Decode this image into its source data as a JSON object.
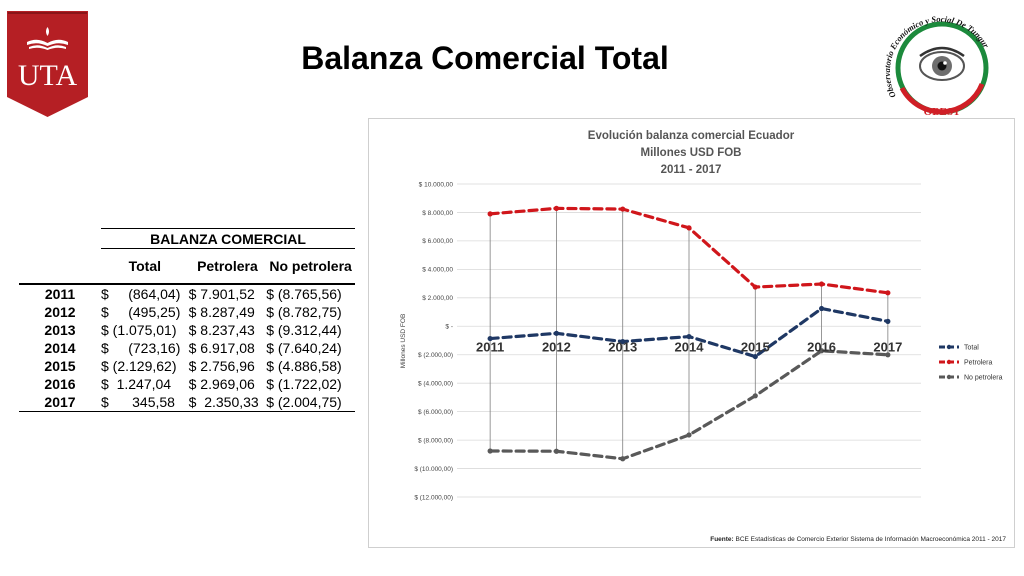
{
  "slide": {
    "title": "Balanza Comercial Total",
    "logo_left_text": "UTA",
    "logo_right_text": "OBEST",
    "logo_right_ring_text": "Observatorio Económico y Social De Tungurahua"
  },
  "table": {
    "header": "BALANZA COMERCIAL",
    "columns": [
      "Total",
      "Petrolera",
      "No petrolera"
    ],
    "rows": [
      {
        "year": "2011",
        "total": "$     (864,04)",
        "petrolera": "$ 7.901,52",
        "no_petrolera": "$ (8.765,56)"
      },
      {
        "year": "2012",
        "total": "$     (495,25)",
        "petrolera": "$ 8.287,49",
        "no_petrolera": "$ (8.782,75)"
      },
      {
        "year": "2013",
        "total": "$ (1.075,01)",
        "petrolera": "$ 8.237,43",
        "no_petrolera": "$ (9.312,44)"
      },
      {
        "year": "2014",
        "total": "$     (723,16)",
        "petrolera": "$ 6.917,08",
        "no_petrolera": "$ (7.640,24)"
      },
      {
        "year": "2015",
        "total": "$ (2.129,62)",
        "petrolera": "$ 2.756,96",
        "no_petrolera": "$ (4.886,58)"
      },
      {
        "year": "2016",
        "total": "$  1.247,04",
        "petrolera": "$ 2.969,06",
        "no_petrolera": "$ (1.722,02)"
      },
      {
        "year": "2017",
        "total": "$      345,58",
        "petrolera": "$  2.350,33",
        "no_petrolera": "$ (2.004,75)"
      }
    ]
  },
  "chart_data": {
    "type": "line",
    "title_lines": [
      "Evolución balanza comercial Ecuador",
      "Millones USD FOB",
      "2011 - 2017"
    ],
    "ylabel": "Millones USD FOB",
    "ylim": [
      -12000,
      10000
    ],
    "yticks": [
      10000,
      8000,
      6000,
      4000,
      2000,
      0,
      -2000,
      -4000,
      -6000,
      -8000,
      -10000,
      -12000
    ],
    "ytick_labels": [
      "$ 10.000,00",
      "$ 8.000,00",
      "$ 6.000,00",
      "$ 4.000,00",
      "$ 2.000,00",
      "$ -",
      "$ (2.000,00)",
      "$ (4.000,00)",
      "$ (6.000,00)",
      "$ (8.000,00)",
      "$ (10.000,00)",
      "$ (12.000,00)"
    ],
    "categories": [
      "2011",
      "2012",
      "2013",
      "2014",
      "2015",
      "2016",
      "2017"
    ],
    "grid": true,
    "drop_lines": true,
    "legend_position": "right",
    "series": [
      {
        "name": "Total",
        "color": "#1f3864",
        "values": [
          -864.04,
          -495.25,
          -1075.01,
          -723.16,
          -2129.62,
          1247.04,
          345.58
        ]
      },
      {
        "name": "Petrolera",
        "color": "#d0161b",
        "values": [
          7901.52,
          8287.49,
          8237.43,
          6917.08,
          2756.96,
          2969.06,
          2350.33
        ]
      },
      {
        "name": "No petrolera",
        "color": "#595959",
        "values": [
          -8765.56,
          -8782.75,
          -9312.44,
          -7640.24,
          -4886.58,
          -1722.02,
          -2004.75
        ]
      }
    ],
    "source_label": "Fuente:",
    "source_text": "BCE Estadísticas de Comercio Exterior Sistema de Información Macroeconómica 2011 - 2017"
  },
  "colors": {
    "uta_red": "#b51f24",
    "obest_green": "#1c8a3c",
    "obest_red": "#d01f26"
  }
}
